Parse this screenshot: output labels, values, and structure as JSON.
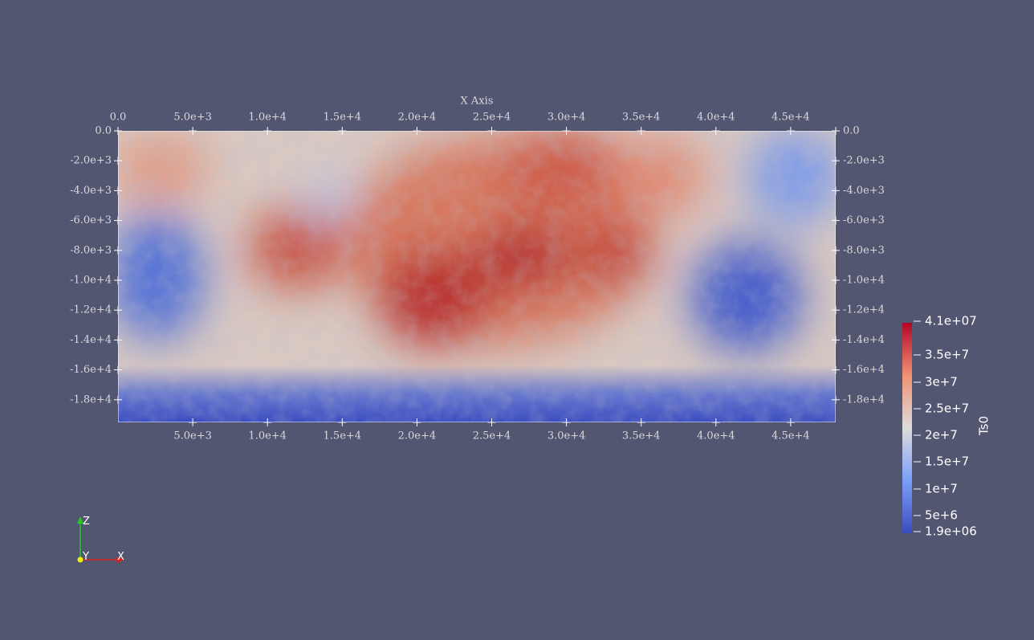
{
  "axes": {
    "title": "X Axis",
    "x_ticks_top": [
      "0.0",
      "5.0e+3",
      "1.0e+4",
      "1.5e+4",
      "2.0e+4",
      "2.5e+4",
      "3.0e+4",
      "3.5e+4",
      "4.0e+4",
      "4.5e+4"
    ],
    "x_ticks_bottom": [
      "5.0e+3",
      "1.0e+4",
      "1.5e+4",
      "2.0e+4",
      "2.5e+4",
      "3.0e+4",
      "3.5e+4",
      "4.0e+4",
      "4.5e+4"
    ],
    "y_ticks_left": [
      "0.0",
      "-2.0e+3",
      "-4.0e+3",
      "-6.0e+3",
      "-8.0e+3",
      "-1.0e+4",
      "-1.2e+4",
      "-1.4e+4",
      "-1.6e+4",
      "-1.8e+4"
    ],
    "y_ticks_right": [
      "0.0",
      "-2.0e+3",
      "-4.0e+3",
      "-6.0e+3",
      "-8.0e+3",
      "-1.0e+4",
      "-1.2e+4",
      "-1.4e+4",
      "-1.6e+4",
      "-1.8e+4"
    ]
  },
  "colorbar": {
    "title": "Ts0",
    "labels": [
      "4.1e+07",
      "3.5e+7",
      "3e+7",
      "2.5e+7",
      "2e+7",
      "1.5e+7",
      "1e+7",
      "5e+6",
      "1.9e+06"
    ]
  },
  "orientation": {
    "z": "Z",
    "y": "Y",
    "x": "X"
  }
}
